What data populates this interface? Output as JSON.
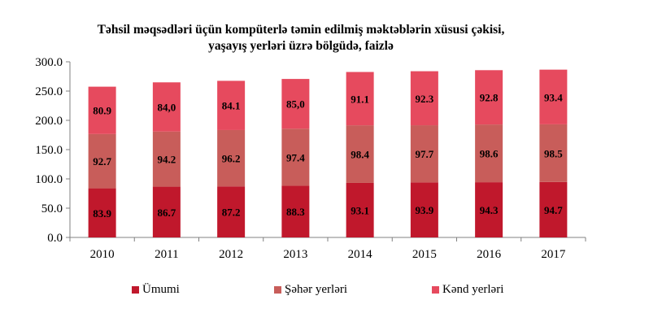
{
  "chart_data": {
    "type": "bar",
    "stacked": true,
    "title_line1": "Təhsil məqsədləri üçün kompüterlə təmin edilmiş məktəblərin xüsusi çəkisi,",
    "title_line2": "yaşayış yerləri üzrə bölgüdə, faizlə",
    "categories": [
      "2010",
      "2011",
      "2012",
      "2013",
      "2014",
      "2015",
      "2016",
      "2017"
    ],
    "series": [
      {
        "name": "Ümumi",
        "color": "#c0182c",
        "values": [
          83.9,
          86.7,
          87.2,
          88.3,
          93.1,
          93.9,
          94.3,
          94.7
        ],
        "labels": [
          "83.9",
          "86.7",
          "87.2",
          "88.3",
          "93.1",
          "93.9",
          "94.3",
          "94.7"
        ]
      },
      {
        "name": "Şəhər yerləri",
        "color": "#c85d5a",
        "values": [
          92.7,
          94.2,
          96.2,
          97.4,
          98.4,
          97.7,
          98.6,
          98.5
        ],
        "labels": [
          "92.7",
          "94.2",
          "96.2",
          "97.4",
          "98.4",
          "97.7",
          "98.6",
          "98.5"
        ]
      },
      {
        "name": "Kənd yerləri",
        "color": "#e64a5e",
        "values": [
          80.9,
          84.0,
          84.1,
          85.0,
          91.1,
          92.3,
          92.8,
          93.4
        ],
        "labels": [
          "80.9",
          "84,0",
          "84.1",
          "85,0",
          "91.1",
          "92.3",
          "92.8",
          "93.4"
        ]
      }
    ],
    "y_ticks": [
      "0.0",
      "50.0",
      "100.0",
      "150.0",
      "200.0",
      "250.0",
      "300.0"
    ],
    "ylim": [
      0,
      300
    ],
    "grid": false,
    "legend_position": "bottom"
  }
}
